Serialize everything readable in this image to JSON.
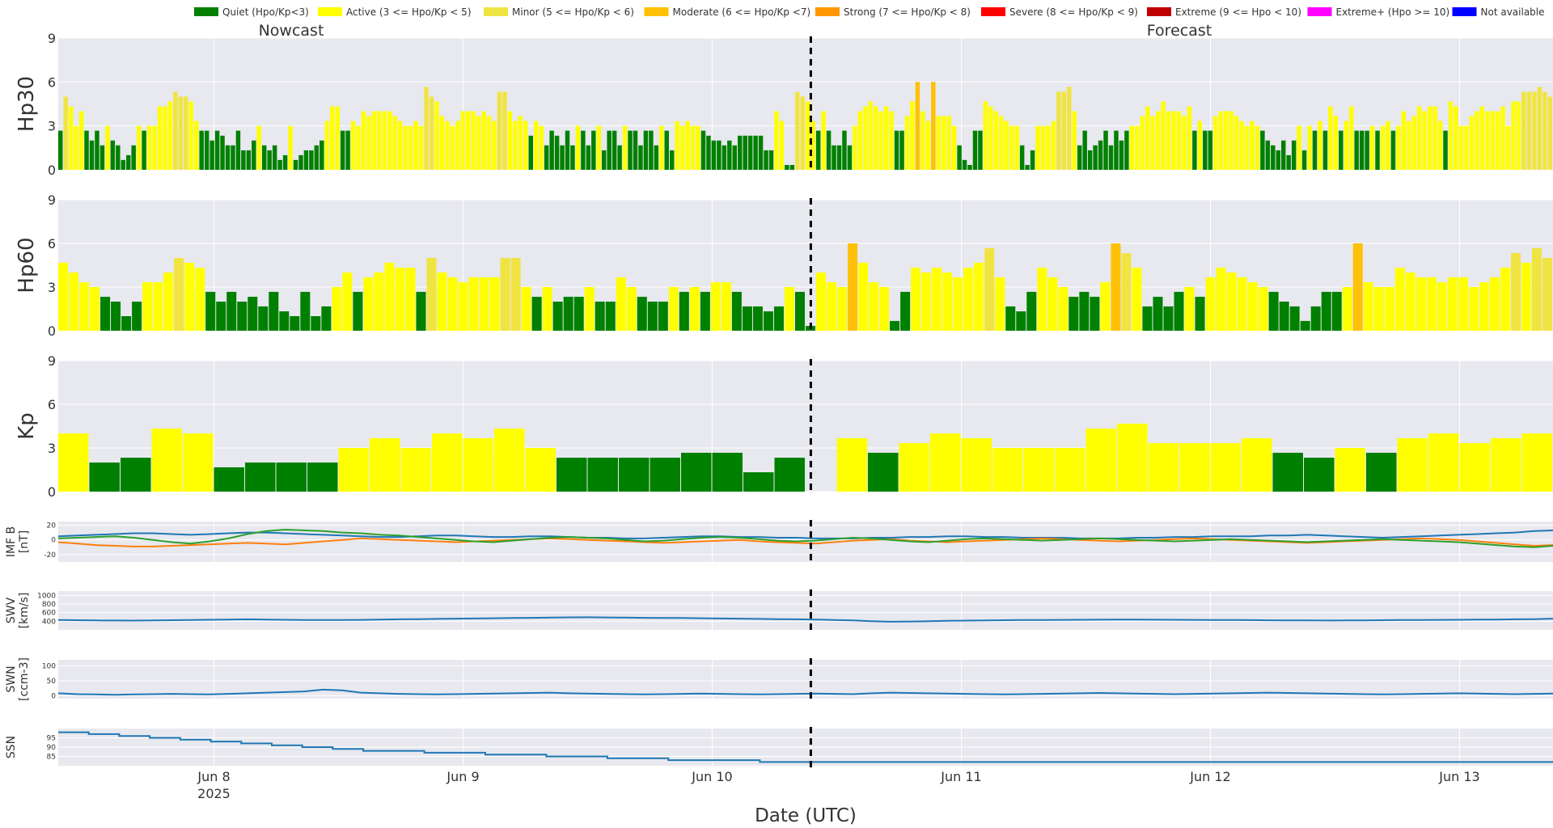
{
  "chart_data": {
    "type": "bar",
    "legend": {
      "placement": "top",
      "items": [
        {
          "label": "Quiet (Hpo/Kp<3)",
          "color": "#008000"
        },
        {
          "label": "Active (3 <= Hpo/Kp < 5)",
          "color": "#ffff00"
        },
        {
          "label": "Minor (5 <= Hpo/Kp < 6)",
          "color": "#f0e442"
        },
        {
          "label": "Moderate (6 <= Hpo/Kp <7)",
          "color": "#ffc107"
        },
        {
          "label": "Strong (7 <= Hpo/Kp < 8)",
          "color": "#ff9800"
        },
        {
          "label": "Severe (8 <= Hpo/Kp < 9)",
          "color": "#ff0000"
        },
        {
          "label": "Extreme (9 <= Hpo < 10)",
          "color": "#c00000"
        },
        {
          "label": "Extreme+ (Hpo >= 10)",
          "color": "#ff00ff"
        },
        {
          "label": "Not available",
          "color": "#0000ff"
        }
      ]
    },
    "section_labels": {
      "left": "Nowcast",
      "right": "Forecast"
    },
    "xlabel": "Date (UTC)",
    "x_range": [
      "2025-06-07 09:00",
      "2025-06-13 09:00"
    ],
    "now_marker": "2025-06-10 09:30",
    "x_ticks": [
      {
        "date": "2025-06-08",
        "label": "Jun 8",
        "sublabel": "2025"
      },
      {
        "date": "2025-06-09",
        "label": "Jun 9",
        "sublabel": ""
      },
      {
        "date": "2025-06-10",
        "label": "Jun 10",
        "sublabel": ""
      },
      {
        "date": "2025-06-11",
        "label": "Jun 11",
        "sublabel": ""
      },
      {
        "date": "2025-06-12",
        "label": "Jun 12",
        "sublabel": ""
      },
      {
        "date": "2025-06-13",
        "label": "Jun 13",
        "sublabel": ""
      }
    ],
    "panels": {
      "hp30": {
        "ylabel": "Hp30",
        "ylim": [
          0,
          9
        ],
        "yticks": [
          0,
          3,
          6,
          9
        ],
        "values": [
          2.67,
          5.0,
          4.33,
          3.0,
          4.0,
          2.67,
          2.0,
          2.67,
          1.67,
          3.0,
          2.0,
          1.67,
          0.67,
          1.0,
          1.67,
          3.0,
          2.67,
          3.0,
          3.0,
          4.33,
          4.33,
          4.67,
          5.33,
          5.0,
          5.0,
          4.67,
          3.33,
          2.67,
          2.67,
          2.0,
          2.67,
          2.33,
          1.67,
          1.67,
          2.67,
          1.33,
          1.33,
          2.0,
          3.0,
          1.67,
          1.33,
          1.67,
          0.67,
          1.0,
          3.0,
          0.67,
          1.0,
          1.33,
          1.33,
          1.67,
          2.0,
          3.33,
          4.33,
          4.33,
          2.67,
          2.67,
          3.33,
          3.0,
          4.0,
          3.67,
          4.0,
          4.0,
          4.0,
          4.0,
          3.67,
          3.33,
          3.0,
          3.0,
          3.33,
          3.0,
          5.67,
          5.0,
          4.67,
          3.67,
          3.33,
          3.0,
          3.33,
          4.0,
          4.0,
          4.0,
          3.67,
          4.0,
          3.67,
          3.33,
          5.33,
          5.33,
          4.0,
          3.33,
          3.67,
          3.33,
          2.33,
          3.33,
          3.0,
          1.67,
          2.67,
          2.33,
          1.67,
          2.67,
          1.67,
          3.0,
          2.67,
          1.67,
          2.67,
          3.0,
          1.33,
          2.67,
          2.67,
          1.67,
          3.0,
          2.67,
          2.67,
          1.67,
          2.67,
          2.67,
          1.67,
          3.0,
          2.67,
          1.33,
          3.33,
          3.0,
          3.33,
          3.0,
          3.0,
          2.67,
          2.33,
          2.0,
          2.0,
          1.67,
          2.0,
          1.67,
          2.33,
          2.33,
          2.33,
          2.33,
          2.33,
          1.33,
          1.33,
          4.0,
          3.33,
          0.33,
          0.33,
          5.33,
          5.0,
          4.67,
          3.33,
          2.67,
          4.0,
          2.67,
          1.67,
          1.67,
          2.67,
          1.67,
          3.0,
          4.0,
          4.33,
          4.67,
          4.33,
          4.0,
          4.33,
          4.0,
          2.67,
          2.67,
          3.67,
          4.67,
          6.0,
          4.0,
          3.33,
          6.0,
          3.67,
          3.67,
          3.67,
          3.0,
          1.67,
          0.67,
          0.33,
          2.67,
          2.67,
          4.67,
          4.33,
          4.0,
          3.67,
          3.33,
          3.0,
          3.0,
          1.67,
          0.33,
          1.33,
          3.0,
          3.0,
          3.0,
          3.33,
          5.33,
          5.33,
          5.67,
          4.0,
          1.67,
          2.67,
          1.33,
          1.67,
          2.0,
          2.67,
          1.67,
          2.67,
          2.0,
          2.67,
          3.0,
          3.0,
          3.67,
          4.33,
          3.67,
          4.0,
          4.67,
          4.0,
          4.0,
          4.0,
          3.67,
          4.33,
          2.67,
          3.33,
          2.67,
          2.67,
          3.67,
          4.0,
          4.0,
          4.0,
          3.67,
          3.33,
          3.0,
          3.33,
          3.0,
          2.67,
          2.0,
          1.67,
          1.33,
          2.0,
          1.0,
          2.0,
          3.0,
          1.33,
          3.0,
          2.67,
          3.33,
          2.67,
          4.33,
          3.67,
          2.67,
          3.33,
          4.33,
          2.67,
          2.67,
          2.67,
          3.0,
          2.67,
          3.0,
          3.33,
          2.67,
          3.0,
          4.0,
          3.33,
          3.67,
          4.33,
          4.0,
          4.33,
          4.33,
          3.33,
          2.67,
          4.67,
          4.33,
          3.0,
          3.0,
          3.67,
          4.0,
          4.33,
          4.0,
          4.0,
          4.0,
          4.33,
          3.0,
          4.67,
          4.67,
          5.33,
          5.33,
          5.33,
          5.67,
          5.33,
          5.0
        ]
      },
      "hp60": {
        "ylabel": "Hp60",
        "ylim": [
          0,
          9
        ],
        "yticks": [
          0,
          3,
          6,
          9
        ],
        "values": [
          4.67,
          4.0,
          3.33,
          3.0,
          2.33,
          2.0,
          1.0,
          2.0,
          3.33,
          3.33,
          4.0,
          5.0,
          4.67,
          4.33,
          2.67,
          2.0,
          2.67,
          2.0,
          2.33,
          1.67,
          2.67,
          1.33,
          1.0,
          2.67,
          1.0,
          1.67,
          3.0,
          4.0,
          2.67,
          3.67,
          4.0,
          4.67,
          4.33,
          4.33,
          2.67,
          5.0,
          4.0,
          3.67,
          3.33,
          3.67,
          3.67,
          3.67,
          5.0,
          5.0,
          3.0,
          2.33,
          3.0,
          2.0,
          2.33,
          2.33,
          3.0,
          2.0,
          2.0,
          3.67,
          3.0,
          2.33,
          2.0,
          2.0,
          3.0,
          2.67,
          3.0,
          2.67,
          3.33,
          3.33,
          2.67,
          1.67,
          1.67,
          1.33,
          1.67,
          3.0,
          2.67,
          0.33,
          4.0,
          3.33,
          3.0,
          6.0,
          4.67,
          3.33,
          3.0,
          0.67,
          2.67,
          4.33,
          4.0,
          4.33,
          4.0,
          3.67,
          4.33,
          4.67,
          5.67,
          3.67,
          1.67,
          1.33,
          2.67,
          4.33,
          3.67,
          3.0,
          2.33,
          2.67,
          2.33,
          3.33,
          6.0,
          5.33,
          4.33,
          1.67,
          2.33,
          1.67,
          2.67,
          3.0,
          2.33,
          3.67,
          4.33,
          4.0,
          3.67,
          3.33,
          3.0,
          2.67,
          2.0,
          1.67,
          0.67,
          1.67,
          2.67,
          2.67,
          3.0,
          6.0,
          3.33,
          3.0,
          3.0,
          4.33,
          4.0,
          3.67,
          3.67,
          3.33,
          3.67,
          3.67,
          3.0,
          3.33,
          3.67,
          4.33,
          5.33,
          4.67,
          5.67,
          5.0
        ]
      },
      "kp": {
        "ylabel": "Kp",
        "ylim": [
          0,
          9
        ],
        "yticks": [
          0,
          3,
          6,
          9
        ],
        "values": [
          4.0,
          2.0,
          2.33,
          4.33,
          4.0,
          1.67,
          2.0,
          2.0,
          2.0,
          3.0,
          3.67,
          3.0,
          4.0,
          3.67,
          4.33,
          3.0,
          2.33,
          2.33,
          2.33,
          2.33,
          2.67,
          2.67,
          1.33,
          2.33,
          null,
          3.67,
          2.67,
          3.33,
          4.0,
          3.67,
          3.0,
          3.0,
          3.0,
          4.33,
          4.67,
          3.33,
          3.33,
          3.33,
          3.67,
          2.67,
          2.33,
          3.0,
          2.67,
          3.67,
          4.0,
          3.33,
          3.67,
          4.0
        ]
      },
      "imf": {
        "ylabel": "IMF B",
        "ylabel2": "[nT]",
        "ylim": [
          -30,
          25
        ],
        "yticks": [
          -20,
          0,
          20
        ],
        "series": [
          {
            "name": "",
            "color": "#1f77b4",
            "values": [
              5,
              6,
              7,
              8,
              9,
              9,
              8,
              7,
              8,
              9,
              10,
              10,
              9,
              8,
              7,
              6,
              5,
              4,
              4,
              5,
              6,
              6,
              5,
              4,
              4,
              5,
              5,
              4,
              3,
              3,
              2,
              2,
              3,
              4,
              5,
              5,
              4,
              4,
              3,
              3,
              2,
              2,
              2,
              3,
              3,
              4,
              4,
              5,
              5,
              4,
              4,
              3,
              3,
              3,
              2,
              2,
              2,
              3,
              3,
              4,
              4,
              5,
              5,
              5,
              6,
              6,
              7,
              6,
              5,
              4,
              3,
              4,
              5,
              6,
              7,
              8,
              9,
              10,
              12,
              13
            ]
          },
          {
            "name": "",
            "color": "#ff7f0e",
            "values": [
              -3,
              -5,
              -7,
              -8,
              -9,
              -9,
              -8,
              -7,
              -6,
              -5,
              -4,
              -5,
              -6,
              -4,
              -2,
              0,
              2,
              1,
              0,
              -1,
              -2,
              -3,
              -2,
              -1,
              0,
              1,
              2,
              1,
              0,
              -1,
              -2,
              -3,
              -4,
              -3,
              -2,
              -1,
              0,
              -2,
              -3,
              -4,
              -5,
              -3,
              -1,
              0,
              1,
              -1,
              -2,
              -3,
              -2,
              -1,
              0,
              1,
              2,
              1,
              0,
              -1,
              -2,
              -1,
              0,
              1,
              2,
              1,
              0,
              -1,
              -2,
              -3,
              -4,
              -3,
              -2,
              -1,
              0,
              1,
              2,
              1,
              0,
              -2,
              -4,
              -6,
              -8,
              -7
            ]
          },
          {
            "name": "",
            "color": "#2ca02c",
            "values": [
              2,
              3,
              4,
              5,
              3,
              0,
              -3,
              -5,
              -2,
              2,
              8,
              12,
              14,
              13,
              12,
              10,
              9,
              7,
              6,
              4,
              2,
              0,
              -2,
              -3,
              -1,
              1,
              3,
              4,
              3,
              2,
              0,
              -2,
              -1,
              1,
              3,
              4,
              3,
              1,
              -1,
              -2,
              -1,
              1,
              3,
              2,
              0,
              -2,
              -3,
              -1,
              1,
              2,
              1,
              0,
              -1,
              0,
              1,
              2,
              1,
              0,
              -1,
              -2,
              -1,
              0,
              1,
              0,
              -1,
              -2,
              -3,
              -2,
              -1,
              0,
              1,
              0,
              -1,
              -2,
              -3,
              -5,
              -7,
              -9,
              -10,
              -8
            ]
          }
        ]
      },
      "swv": {
        "ylabel": "SWV",
        "ylabel2": "[km/s]",
        "ylim": [
          200,
          1100
        ],
        "yticks": [
          400,
          600,
          800,
          1000
        ],
        "series": [
          {
            "name": "",
            "color": "#1f77b4",
            "values": [
              430,
              425,
              420,
              418,
              415,
              420,
              425,
              430,
              435,
              440,
              445,
              440,
              435,
              430,
              428,
              430,
              432,
              438,
              445,
              450,
              455,
              460,
              465,
              470,
              475,
              480,
              485,
              490,
              492,
              488,
              485,
              480,
              478,
              475,
              470,
              465,
              460,
              455,
              450,
              445,
              440,
              430,
              420,
              400,
              390,
              395,
              400,
              410,
              415,
              420,
              425,
              428,
              430,
              432,
              435,
              437,
              440,
              438,
              436,
              434,
              432,
              430,
              428,
              426,
              424,
              422,
              420,
              418,
              420,
              422,
              425,
              428,
              430,
              432,
              435,
              438,
              440,
              445,
              450,
              460
            ]
          }
        ]
      },
      "swn": {
        "ylabel": "SWN",
        "ylabel2": "[ccm-3]",
        "ylim": [
          -10,
          120
        ],
        "yticks": [
          0,
          50,
          100
        ],
        "series": [
          {
            "name": "",
            "color": "#1f77b4",
            "values": [
              8,
              5,
              4,
              3,
              4,
              5,
              6,
              5,
              4,
              6,
              8,
              10,
              12,
              14,
              20,
              18,
              10,
              8,
              6,
              5,
              4,
              5,
              6,
              7,
              8,
              9,
              10,
              8,
              7,
              6,
              5,
              4,
              5,
              6,
              7,
              6,
              5,
              4,
              5,
              6,
              7,
              6,
              5,
              8,
              10,
              9,
              8,
              7,
              6,
              5,
              4,
              5,
              6,
              7,
              8,
              9,
              8,
              7,
              6,
              5,
              6,
              7,
              8,
              9,
              10,
              9,
              8,
              7,
              6,
              5,
              4,
              5,
              6,
              7,
              8,
              7,
              6,
              5,
              6,
              7
            ]
          }
        ]
      },
      "ssn": {
        "ylabel": "SSN",
        "ylim": [
          80,
          100
        ],
        "yticks": [
          85,
          90,
          95
        ],
        "series": [
          {
            "name": "",
            "color": "#1f77b4",
            "values": [
              98,
              97,
              96,
              95,
              94,
              93,
              92,
              91,
              90,
              89,
              88,
              88,
              87,
              87,
              86,
              86,
              85,
              85,
              84,
              84,
              83,
              83,
              83,
              82,
              82,
              82,
              82,
              82,
              82,
              82,
              82,
              82,
              82,
              82,
              82,
              82,
              82,
              82,
              82,
              82,
              82,
              82,
              82,
              82,
              82,
              82,
              82,
              82,
              82,
              82
            ]
          }
        ]
      }
    },
    "colors": {
      "plot_bg": "#e8e8ef",
      "grid": "#ffffff",
      "now_line": "#000000",
      "quiet": "#008000",
      "active": "#ffff00",
      "minor": "#f0e442",
      "moderate": "#ffc107",
      "strong": "#ff9800"
    }
  }
}
